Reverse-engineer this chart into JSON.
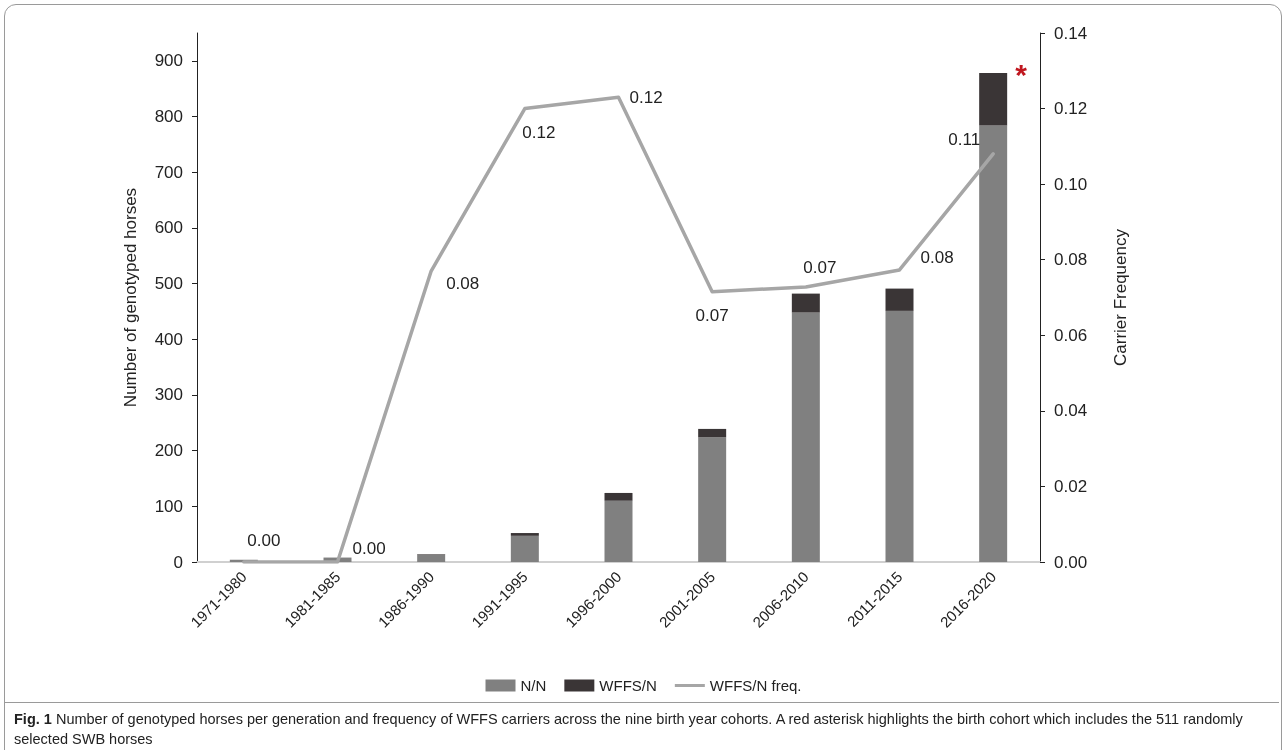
{
  "chart_data": {
    "type": "bar",
    "stacked": true,
    "categories": [
      "1971-1980",
      "1981-1985",
      "1986-1990",
      "1991-1995",
      "1996-2000",
      "2001-2005",
      "2006-2010",
      "2011-2015",
      "2016-2020"
    ],
    "series": [
      {
        "name": "N/N",
        "color": "#808080",
        "values": [
          4,
          8,
          13,
          47,
          110,
          224,
          448,
          451,
          784
        ]
      },
      {
        "name": "WFFS/N",
        "color": "#3a3536",
        "values": [
          0,
          0,
          1,
          5,
          14,
          15,
          34,
          40,
          94
        ]
      },
      {
        "name": "WFFS/N freq.",
        "type": "line",
        "axis": "y2",
        "color": "#a6a6a6",
        "values": [
          0,
          0,
          0.077,
          0.12,
          0.123,
          0.0715,
          0.0728,
          0.0773,
          0.108
        ],
        "value_labels": [
          "0.00",
          "0.00",
          "0.08",
          "0.12",
          "0.12",
          "0.07",
          "0.07",
          "0.08",
          "0.11"
        ]
      }
    ],
    "ylabel": "Number of genotyped horses",
    "y2label": "Carrier Frequency",
    "ylim": [
      0,
      950
    ],
    "yticks": [
      0,
      100,
      200,
      300,
      400,
      500,
      600,
      700,
      800,
      900
    ],
    "y2lim": [
      0,
      0.14
    ],
    "y2ticks": [
      {
        "value": 0,
        "label": "0.00"
      },
      {
        "value": 0.02,
        "label": "0.02"
      },
      {
        "value": 0.04,
        "label": "0.04"
      },
      {
        "value": 0.06,
        "label": "0.06"
      },
      {
        "value": 0.08,
        "label": "0.08"
      },
      {
        "value": 0.1,
        "label": "0.10"
      },
      {
        "value": 0.12,
        "label": "0.12"
      },
      {
        "value": 0.14,
        "label": "0.14"
      }
    ],
    "grid": false,
    "legend": "bottom",
    "marker": "none",
    "line_style": "solid",
    "annotations": [
      "*",
      "Fig. 1  Number of genotyped horses per generation and frequency of WFFS carriers across the nine birth year cohorts. A red asterisk highlights the birth cohort which includes the 511 randomly selected SWB horses"
    ]
  }
}
